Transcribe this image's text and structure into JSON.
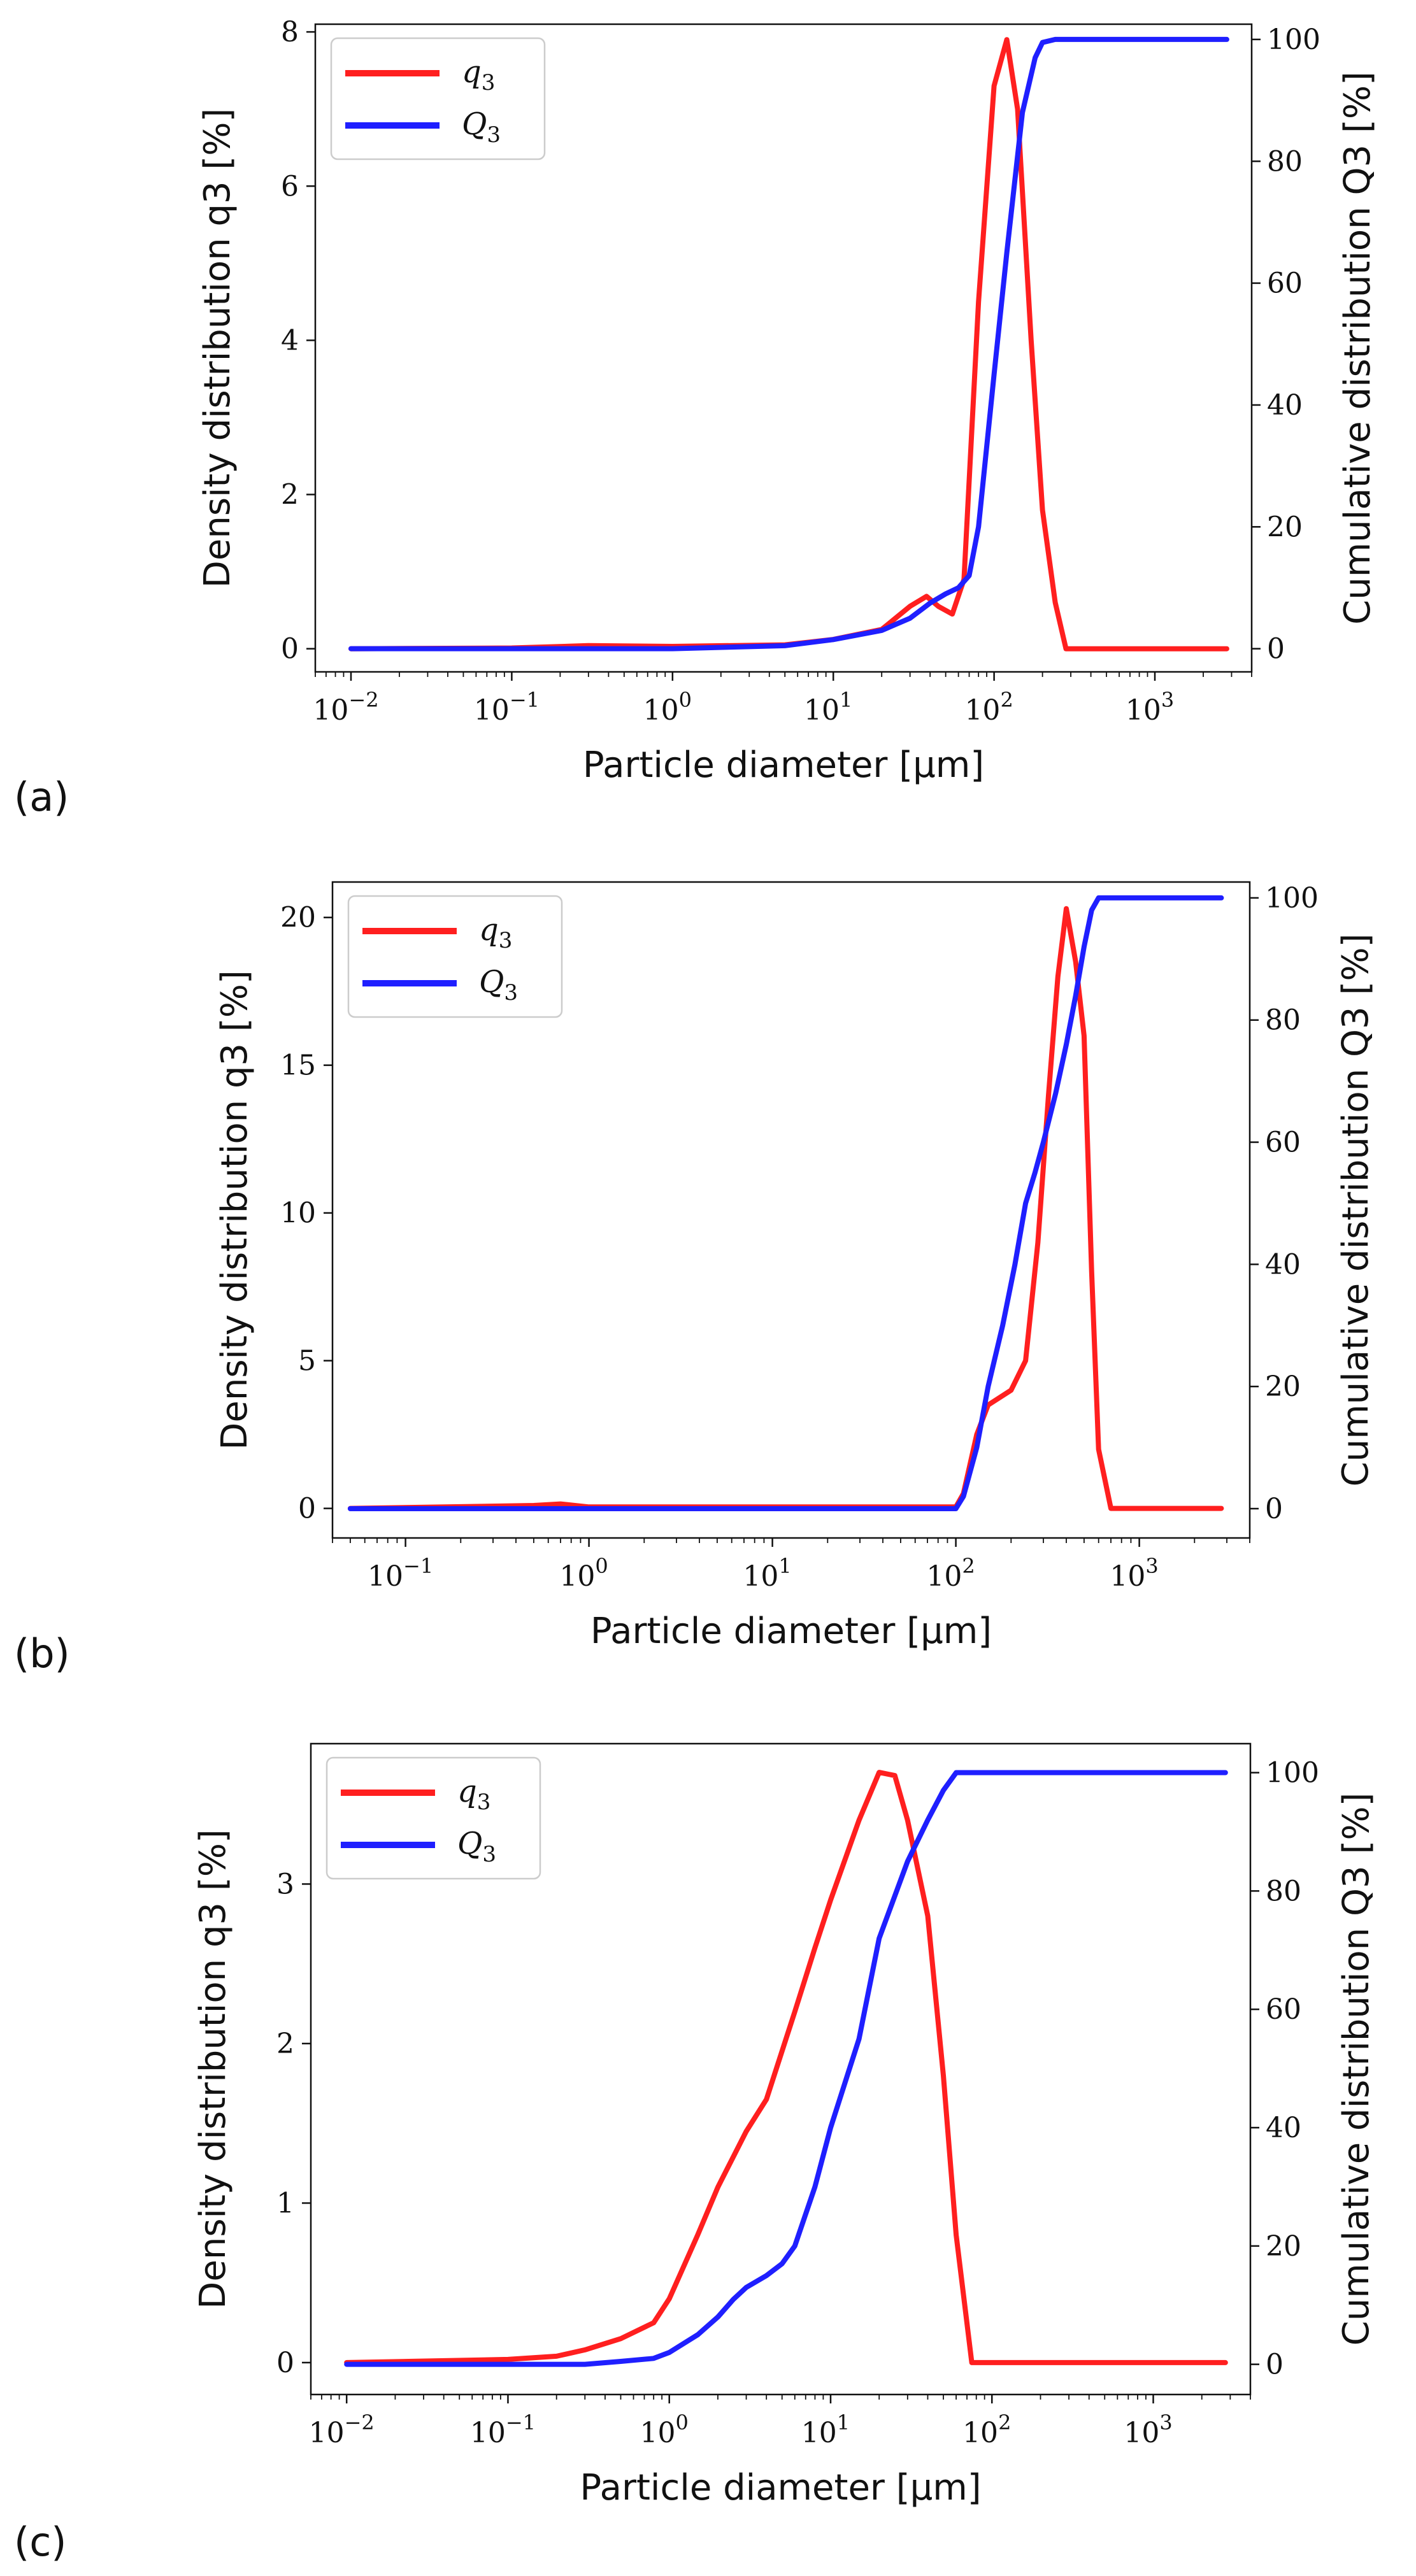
{
  "colors": {
    "q3": "#ff1f1f",
    "Q3": "#1f1fff",
    "axes": "#111111",
    "legend_border": "#cccccc"
  },
  "chart_data": [
    {
      "id": "a",
      "panel_label": "(a)",
      "type": "line",
      "xscale": "log",
      "xlim": [
        0.006,
        4000
      ],
      "xticks": [
        {
          "value": 0.01,
          "base": "10",
          "exp": "−2"
        },
        {
          "value": 0.1,
          "base": "10",
          "exp": "−1"
        },
        {
          "value": 1,
          "base": "10",
          "exp": "0"
        },
        {
          "value": 10,
          "base": "10",
          "exp": "1"
        },
        {
          "value": 100,
          "base": "10",
          "exp": "2"
        },
        {
          "value": 1000,
          "base": "10",
          "exp": "3"
        }
      ],
      "xlabel": "Particle diameter [μm]",
      "ylabel_left": "Density distribution q3 [%]",
      "ylabel_right": "Cumulative distribution Q3 [%]",
      "ylim_left": [
        -0.3,
        8.1
      ],
      "ylim_right": [
        -3.8,
        102.5
      ],
      "yticks_left": [
        0,
        2,
        4,
        6,
        8
      ],
      "yticks_right": [
        0,
        20,
        40,
        60,
        80,
        100
      ],
      "legend": [
        "q3",
        "Q3"
      ],
      "legend_position": "upper-left",
      "series": [
        {
          "name": "q3",
          "axis": "left",
          "x": [
            0.01,
            0.1,
            0.3,
            1,
            5,
            10,
            20,
            30,
            38,
            45,
            55,
            65,
            80,
            100,
            120,
            140,
            170,
            200,
            240,
            280,
            2800
          ],
          "y": [
            0,
            0.01,
            0.04,
            0.03,
            0.05,
            0.12,
            0.25,
            0.55,
            0.68,
            0.55,
            0.45,
            0.9,
            4.5,
            7.3,
            7.9,
            7.0,
            4.0,
            1.8,
            0.6,
            0,
            0
          ]
        },
        {
          "name": "Q3",
          "axis": "right",
          "x": [
            0.01,
            1,
            5,
            10,
            20,
            30,
            40,
            50,
            60,
            70,
            80,
            100,
            120,
            150,
            180,
            200,
            240,
            300,
            2800
          ],
          "y": [
            0,
            0,
            0.5,
            1.5,
            3,
            5,
            7.5,
            9,
            10,
            12,
            20,
            45,
            65,
            88,
            97,
            99.5,
            100,
            100,
            100
          ]
        }
      ]
    },
    {
      "id": "b",
      "panel_label": "(b)",
      "type": "line",
      "xscale": "log",
      "xlim": [
        0.04,
        4000
      ],
      "xticks": [
        {
          "value": 0.1,
          "base": "10",
          "exp": "−1"
        },
        {
          "value": 1,
          "base": "10",
          "exp": "0"
        },
        {
          "value": 10,
          "base": "10",
          "exp": "1"
        },
        {
          "value": 100,
          "base": "10",
          "exp": "2"
        },
        {
          "value": 1000,
          "base": "10",
          "exp": "3"
        }
      ],
      "xlabel": "Particle diameter [μm]",
      "ylabel_left": "Density distribution q3 [%]",
      "ylabel_right": "Cumulative distribution Q3 [%]",
      "ylim_left": [
        -1.0,
        21.2
      ],
      "ylim_right": [
        -4.8,
        102.6
      ],
      "yticks_left": [
        0,
        5,
        10,
        15,
        20
      ],
      "yticks_right": [
        0,
        20,
        40,
        60,
        80,
        100
      ],
      "legend": [
        "q3",
        "Q3"
      ],
      "legend_position": "upper-left",
      "series": [
        {
          "name": "q3",
          "axis": "left",
          "x": [
            0.05,
            0.5,
            0.7,
            1,
            10,
            100,
            110,
            130,
            150,
            200,
            240,
            280,
            320,
            360,
            400,
            450,
            500,
            550,
            600,
            700,
            2800
          ],
          "y": [
            0,
            0.1,
            0.15,
            0.05,
            0.05,
            0.05,
            0.5,
            2.5,
            3.5,
            4.0,
            5.0,
            9.0,
            14.0,
            18.0,
            20.3,
            18.5,
            16.0,
            8.0,
            2.0,
            0,
            0
          ]
        },
        {
          "name": "Q3",
          "axis": "right",
          "x": [
            0.05,
            1,
            100,
            110,
            130,
            150,
            180,
            210,
            240,
            270,
            300,
            350,
            400,
            450,
            500,
            550,
            600,
            800,
            2800
          ],
          "y": [
            0,
            0,
            0,
            2,
            10,
            20,
            30,
            40,
            50,
            55,
            60,
            68,
            76,
            84,
            92,
            98,
            100,
            100,
            100
          ]
        }
      ]
    },
    {
      "id": "c",
      "panel_label": "(c)",
      "type": "line",
      "xscale": "log",
      "xlim": [
        0.006,
        4000
      ],
      "xticks": [
        {
          "value": 0.01,
          "base": "10",
          "exp": "−2"
        },
        {
          "value": 0.1,
          "base": "10",
          "exp": "−1"
        },
        {
          "value": 1,
          "base": "10",
          "exp": "0"
        },
        {
          "value": 10,
          "base": "10",
          "exp": "1"
        },
        {
          "value": 100,
          "base": "10",
          "exp": "2"
        },
        {
          "value": 1000,
          "base": "10",
          "exp": "3"
        }
      ],
      "xlabel": "Particle diameter [μm]",
      "ylabel_left": "Density distribution q3 [%]",
      "ylabel_right": "Cumulative distribution Q3 [%]",
      "ylim_left": [
        -0.2,
        3.88
      ],
      "ylim_right": [
        -5.1,
        104.9
      ],
      "yticks_left": [
        0,
        1,
        2,
        3
      ],
      "yticks_right": [
        0,
        20,
        40,
        60,
        80,
        100
      ],
      "legend": [
        "q3",
        "Q3"
      ],
      "legend_position": "upper-left",
      "series": [
        {
          "name": "q3",
          "axis": "left",
          "x": [
            0.01,
            0.1,
            0.2,
            0.3,
            0.5,
            0.8,
            1,
            1.5,
            2,
            3,
            4,
            6,
            8,
            10,
            15,
            20,
            25,
            30,
            40,
            50,
            60,
            75,
            2800
          ],
          "y": [
            0,
            0.02,
            0.04,
            0.08,
            0.15,
            0.25,
            0.4,
            0.8,
            1.1,
            1.45,
            1.65,
            2.2,
            2.6,
            2.9,
            3.4,
            3.7,
            3.68,
            3.4,
            2.8,
            1.8,
            0.8,
            0,
            0
          ]
        },
        {
          "name": "Q3",
          "axis": "right",
          "x": [
            0.01,
            0.3,
            0.5,
            0.8,
            1,
            1.5,
            2,
            2.5,
            3,
            4,
            5,
            6,
            8,
            10,
            15,
            20,
            30,
            40,
            50,
            60,
            80,
            2800
          ],
          "y": [
            0,
            0,
            0.5,
            1,
            2,
            5,
            8,
            11,
            13,
            15,
            17,
            20,
            30,
            40,
            55,
            72,
            85,
            92,
            97,
            100,
            100,
            100
          ]
        }
      ]
    }
  ]
}
